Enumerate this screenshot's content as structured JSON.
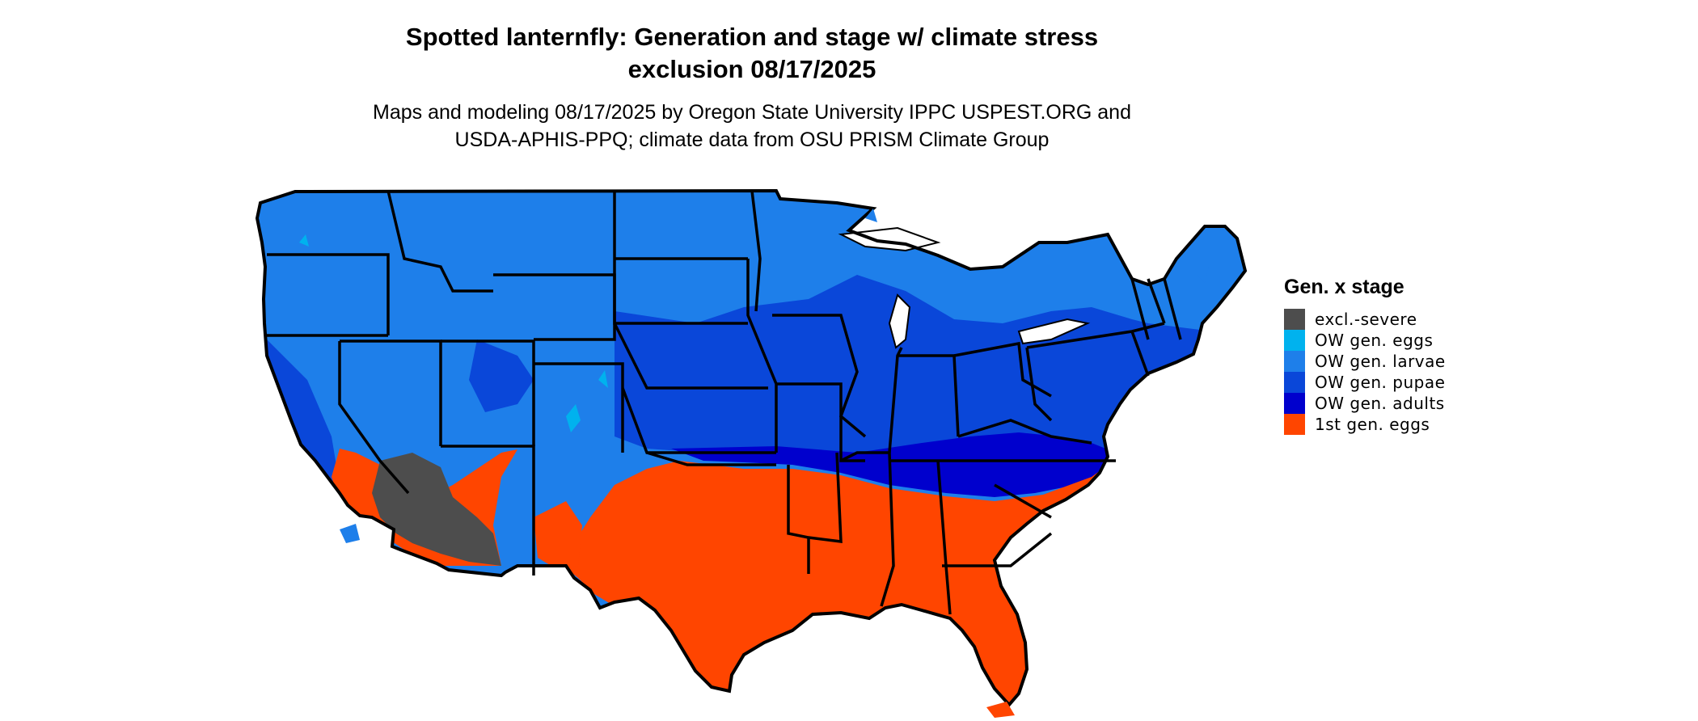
{
  "title": {
    "line1": "Spotted lanternfly: Generation and stage w/ climate stress",
    "line2": "exclusion 08/17/2025"
  },
  "subtitle": {
    "line1": "Maps and modeling 08/17/2025 by Oregon State University IPPC USPEST.ORG and",
    "line2": "USDA-APHIS-PPQ; climate data from OSU PRISM Climate Group"
  },
  "legend": {
    "title": "Gen. x stage",
    "items": [
      {
        "label": "excl.-severe",
        "color": "#4d4d4d"
      },
      {
        "label": "OW gen. eggs",
        "color": "#00b2ee"
      },
      {
        "label": "OW gen. larvae",
        "color": "#1e7fea"
      },
      {
        "label": "OW gen. pupae",
        "color": "#0a47d9"
      },
      {
        "label": "OW gen. adults",
        "color": "#0000cd"
      },
      {
        "label": "1st gen. eggs",
        "color": "#ff4500"
      }
    ]
  },
  "map": {
    "region": "Contiguous United States",
    "border_color": "#000000"
  }
}
